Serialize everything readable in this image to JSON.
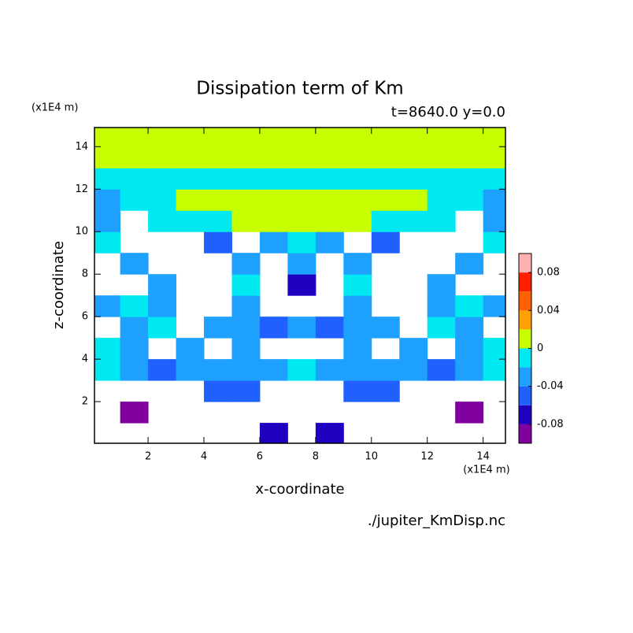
{
  "chart_data": {
    "type": "contour",
    "title": "Dissipation term of Km",
    "subtitle": "t=8640.0 y=0.0",
    "x_label": "x-coordinate",
    "y_label": "z-coordinate",
    "x_unit": "(x1E4 m)",
    "y_unit": "(x1E4 m)",
    "source": "./jupiter_KmDisp.nc",
    "xlim": [
      0.08,
      14.8
    ],
    "ylim": [
      0.04,
      14.9
    ],
    "xticks": [
      2,
      4,
      6,
      8,
      10,
      12,
      14
    ],
    "yticks": [
      2,
      4,
      6,
      8,
      10,
      12,
      14
    ],
    "x": [
      0.5,
      1.5,
      2.5,
      3.5,
      4.5,
      5.5,
      6.5,
      7.5,
      8.5,
      9.5,
      10.5,
      11.5,
      12.5,
      13.5,
      14.5
    ],
    "y": [
      0.5,
      1.5,
      2.5,
      3.5,
      4.5,
      5.5,
      6.5,
      7.5,
      8.5,
      9.5,
      10.5,
      11.5,
      12.5,
      13.5,
      14.5
    ],
    "z": [
      [
        null,
        null,
        null,
        null,
        null,
        null,
        -0.07,
        null,
        -0.07,
        null,
        null,
        null,
        null,
        null,
        null
      ],
      [
        null,
        -0.09,
        null,
        null,
        null,
        null,
        null,
        null,
        null,
        null,
        null,
        null,
        null,
        -0.09,
        null
      ],
      [
        null,
        null,
        null,
        null,
        -0.05,
        -0.05,
        null,
        null,
        null,
        -0.05,
        -0.05,
        null,
        null,
        null,
        null
      ],
      [
        -0.01,
        -0.03,
        -0.05,
        -0.03,
        -0.03,
        -0.03,
        -0.03,
        -0.01,
        -0.03,
        -0.03,
        -0.03,
        -0.03,
        -0.05,
        -0.03,
        -0.01
      ],
      [
        -0.01,
        -0.03,
        null,
        -0.03,
        null,
        -0.03,
        null,
        null,
        null,
        -0.03,
        null,
        -0.03,
        null,
        -0.03,
        -0.01
      ],
      [
        null,
        -0.03,
        -0.01,
        null,
        -0.03,
        -0.03,
        -0.05,
        -0.03,
        -0.05,
        -0.03,
        -0.03,
        null,
        -0.01,
        -0.03,
        null
      ],
      [
        -0.03,
        -0.01,
        -0.03,
        null,
        null,
        -0.03,
        null,
        null,
        null,
        -0.03,
        null,
        null,
        -0.03,
        -0.01,
        -0.03
      ],
      [
        null,
        null,
        -0.03,
        null,
        null,
        -0.01,
        null,
        -0.07,
        null,
        -0.01,
        null,
        null,
        -0.03,
        null,
        null
      ],
      [
        null,
        -0.03,
        null,
        null,
        null,
        -0.03,
        null,
        -0.03,
        null,
        -0.03,
        null,
        null,
        null,
        -0.03,
        null
      ],
      [
        -0.01,
        null,
        null,
        null,
        -0.05,
        null,
        -0.03,
        -0.01,
        -0.03,
        null,
        -0.05,
        null,
        null,
        null,
        -0.01
      ],
      [
        -0.03,
        null,
        -0.01,
        -0.01,
        -0.01,
        0.01,
        0.01,
        0.01,
        0.01,
        0.01,
        -0.01,
        -0.01,
        -0.01,
        null,
        -0.03
      ],
      [
        -0.03,
        -0.01,
        -0.01,
        0.01,
        0.01,
        0.01,
        0.01,
        0.01,
        0.01,
        0.01,
        0.01,
        0.01,
        -0.01,
        -0.01,
        -0.03
      ],
      [
        -0.01,
        -0.01,
        -0.01,
        -0.01,
        -0.01,
        -0.01,
        -0.01,
        -0.01,
        -0.01,
        -0.01,
        -0.01,
        -0.01,
        -0.01,
        -0.01,
        -0.01
      ],
      [
        0.01,
        0.01,
        0.01,
        0.01,
        0.01,
        0.01,
        0.01,
        0.01,
        0.01,
        0.01,
        0.01,
        0.01,
        0.01,
        0.01,
        0.01
      ],
      [
        0.01,
        0.01,
        0.01,
        0.01,
        0.01,
        0.01,
        0.01,
        0.01,
        0.01,
        0.01,
        0.01,
        0.01,
        0.01,
        0.01,
        0.01
      ]
    ],
    "levels": [
      -0.1,
      -0.08,
      -0.06,
      -0.04,
      -0.02,
      0,
      0.02,
      0.04,
      0.06,
      0.08,
      0.1
    ],
    "level_colors": [
      "#8000a0",
      "#2000c0",
      "#2060ff",
      "#1ea0ff",
      "#00e8f0",
      "#c8ff00",
      "#ffa000",
      "#ff6000",
      "#ff2000",
      "#ffb0b0"
    ],
    "colorbar_ticks": [
      -0.08,
      -0.04,
      0,
      0.04,
      0.08
    ]
  }
}
